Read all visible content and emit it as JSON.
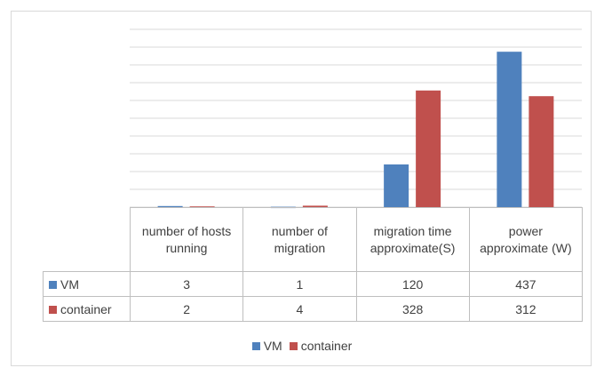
{
  "chart_data": {
    "type": "bar",
    "categories": [
      "number of hosts running",
      "number of migration",
      "migration time approximate(S)",
      "power approximate (W)"
    ],
    "series": [
      {
        "name": "VM",
        "color": "#4f81bd",
        "values": [
          3,
          1,
          120,
          437
        ]
      },
      {
        "name": "container",
        "color": "#c0504d",
        "values": [
          2,
          4,
          328,
          312
        ]
      }
    ],
    "ylim": [
      0,
      500
    ],
    "yticks": [
      0,
      50,
      100,
      150,
      200,
      250,
      300,
      350,
      400,
      450,
      500
    ],
    "grid": true,
    "data_table": true,
    "legend": "bottom"
  }
}
